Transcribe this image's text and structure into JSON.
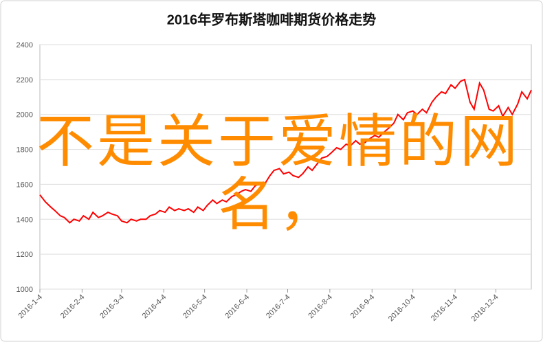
{
  "chart_data": {
    "type": "line",
    "title": "2016年罗布斯塔咖啡期货价格走势",
    "annotation": "不是关于爱情的网名，",
    "x": [
      "2016-1-4",
      "2016-1-8",
      "2016-1-12",
      "2016-1-15",
      "2016-1-19",
      "2016-1-22",
      "2016-1-26",
      "2016-1-29",
      "2016-2-2",
      "2016-2-5",
      "2016-2-9",
      "2016-2-12",
      "2016-2-16",
      "2016-2-19",
      "2016-2-23",
      "2016-2-26",
      "2016-3-1",
      "2016-3-4",
      "2016-3-8",
      "2016-3-11",
      "2016-3-15",
      "2016-3-18",
      "2016-3-22",
      "2016-3-25",
      "2016-3-29",
      "2016-4-1",
      "2016-4-5",
      "2016-4-8",
      "2016-4-12",
      "2016-4-15",
      "2016-4-19",
      "2016-4-22",
      "2016-4-26",
      "2016-4-29",
      "2016-5-3",
      "2016-5-6",
      "2016-5-10",
      "2016-5-13",
      "2016-5-17",
      "2016-5-20",
      "2016-5-24",
      "2016-5-27",
      "2016-5-31",
      "2016-6-3",
      "2016-6-7",
      "2016-6-10",
      "2016-6-14",
      "2016-6-17",
      "2016-6-21",
      "2016-6-24",
      "2016-6-28",
      "2016-7-1",
      "2016-7-5",
      "2016-7-8",
      "2016-7-12",
      "2016-7-15",
      "2016-7-19",
      "2016-7-22",
      "2016-7-26",
      "2016-7-29",
      "2016-8-2",
      "2016-8-5",
      "2016-8-9",
      "2016-8-12",
      "2016-8-16",
      "2016-8-19",
      "2016-8-23",
      "2016-8-26",
      "2016-8-30",
      "2016-9-2",
      "2016-9-6",
      "2016-9-9",
      "2016-9-13",
      "2016-9-16",
      "2016-9-20",
      "2016-9-23",
      "2016-9-27",
      "2016-9-30",
      "2016-10-4",
      "2016-10-7",
      "2016-10-11",
      "2016-10-14",
      "2016-10-18",
      "2016-10-21",
      "2016-10-25",
      "2016-10-28",
      "2016-11-1",
      "2016-11-4",
      "2016-11-8",
      "2016-11-11",
      "2016-11-15",
      "2016-11-18",
      "2016-11-22",
      "2016-11-25",
      "2016-11-29",
      "2016-12-2",
      "2016-12-6",
      "2016-12-9",
      "2016-12-13",
      "2016-12-16",
      "2016-12-20",
      "2016-12-23",
      "2016-12-27",
      "2016-12-30"
    ],
    "series": [
      {
        "color": "#ff0000",
        "values": [
          1540,
          1500,
          1470,
          1450,
          1420,
          1410,
          1380,
          1400,
          1390,
          1420,
          1400,
          1440,
          1410,
          1420,
          1440,
          1430,
          1420,
          1390,
          1380,
          1400,
          1390,
          1400,
          1400,
          1420,
          1430,
          1450,
          1440,
          1470,
          1450,
          1460,
          1450,
          1460,
          1440,
          1470,
          1450,
          1480,
          1510,
          1490,
          1510,
          1500,
          1530,
          1540,
          1560,
          1570,
          1560,
          1590,
          1610,
          1600,
          1650,
          1680,
          1690,
          1660,
          1670,
          1650,
          1640,
          1660,
          1700,
          1680,
          1720,
          1750,
          1760,
          1780,
          1810,
          1800,
          1830,
          1820,
          1850,
          1830,
          1840,
          1860,
          1880,
          1870,
          1900,
          1920,
          1950,
          2000,
          1970,
          2010,
          2020,
          2000,
          2030,
          2010,
          2070,
          2100,
          2130,
          2120,
          2170,
          2150,
          2190,
          2200,
          2070,
          2030,
          2180,
          2140,
          2030,
          2020,
          2050,
          1990,
          2040,
          2000,
          2060,
          2130,
          2090,
          2140
        ]
      }
    ],
    "xlim": [
      "2016-1-4",
      "2016-12-30"
    ],
    "xticks": [
      "2016-1-4",
      "2016-2-4",
      "2016-3-4",
      "2016-4-4",
      "2016-5-4",
      "2016-6-4",
      "2016-7-4",
      "2016-8-4",
      "2016-9-4",
      "2016-10-4",
      "2016-11-4",
      "2016-12-4"
    ],
    "ylim": [
      1000,
      2400
    ],
    "yticks": [
      1000,
      1200,
      1400,
      1600,
      1800,
      2000,
      2200,
      2400
    ],
    "grid": true
  }
}
